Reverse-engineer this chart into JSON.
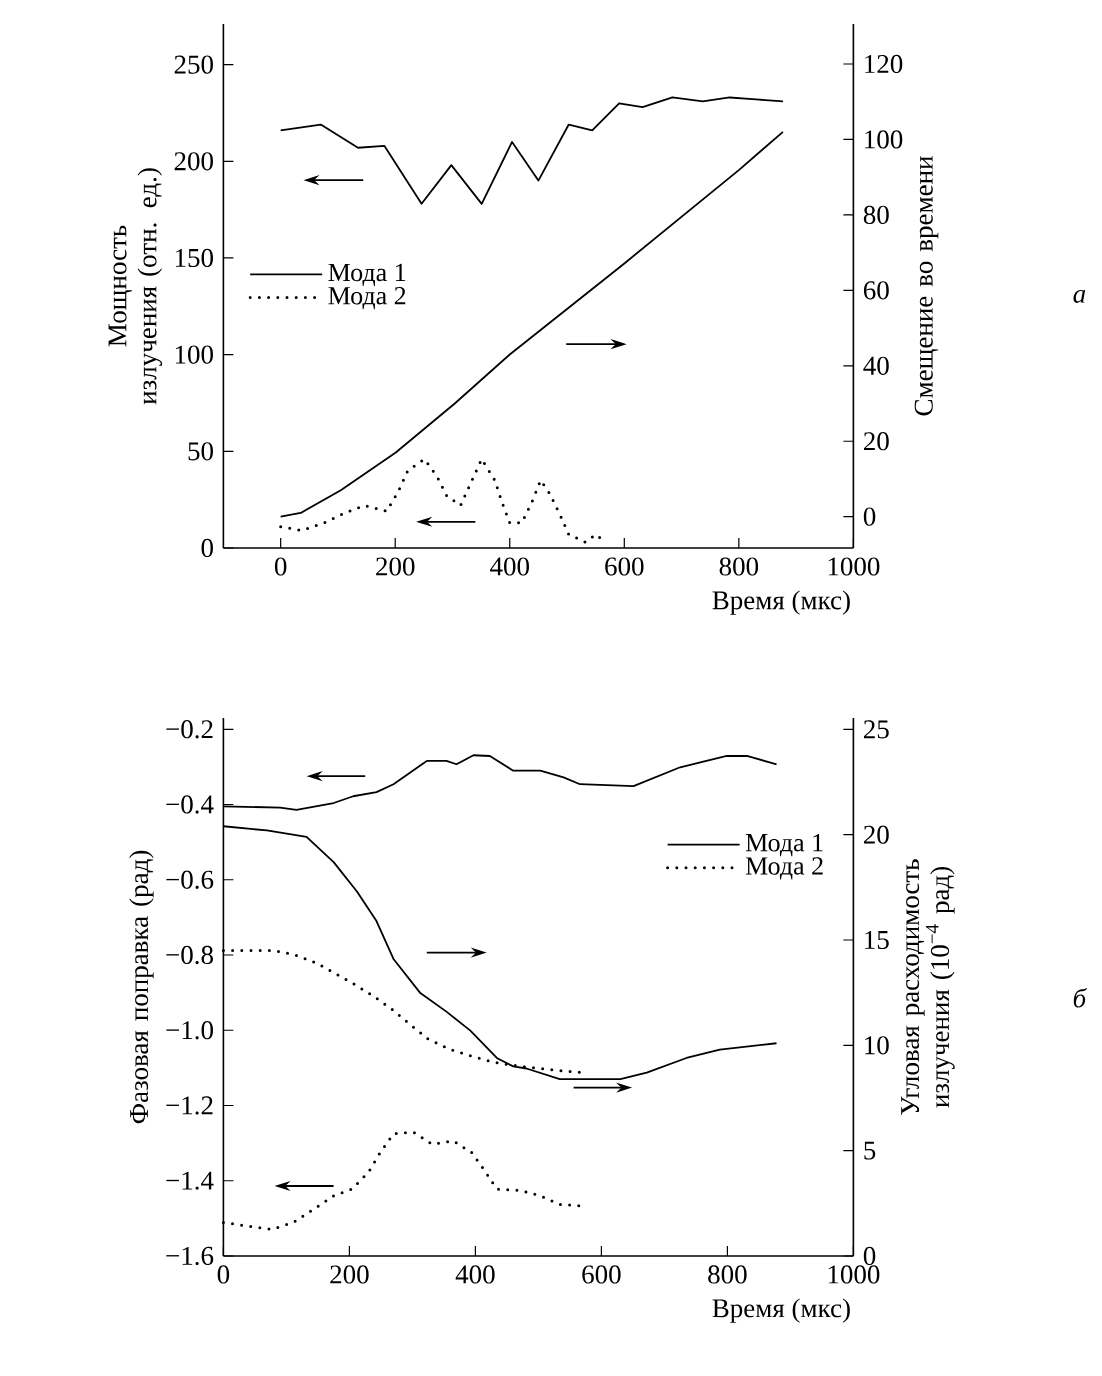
{
  "chart_data": [
    {
      "type": "line",
      "xlabel": "Время (мкс)",
      "ylabel": "Мощность излучения (отн. ед.)",
      "y2label": "Смещение во времени",
      "annotations": [
        "а"
      ],
      "xlim": [
        -100,
        1000
      ],
      "xticks": [
        0,
        200,
        400,
        600,
        800,
        1000
      ],
      "ylim": [
        0,
        271
      ],
      "yticks": [
        0,
        50,
        100,
        150,
        200,
        250
      ],
      "y2lim": [
        -8.3,
        130.6
      ],
      "y2ticks": [
        0,
        20,
        40,
        60,
        80,
        100,
        120
      ],
      "legend": "left",
      "series": [
        {
          "name": "Мода 1",
          "color": "#000000",
          "line_style": "solid",
          "x": [
            0,
            70,
            135,
            181,
            246,
            298,
            351,
            404,
            450,
            503,
            544,
            591,
            632,
            684,
            737,
            784,
            830,
            877
          ],
          "values": [
            216,
            219,
            207,
            208,
            178,
            198,
            178,
            210,
            190,
            219,
            216,
            230,
            228,
            233,
            231,
            233,
            232,
            231
          ]
        },
        {
          "color": "#000000",
          "line_style": "solid",
          "axis": "y2",
          "x": [
            0,
            35,
            105,
            201,
            304,
            400,
            599,
            801,
            877
          ],
          "values": [
            0,
            1,
            7,
            17,
            30,
            43,
            67,
            92,
            102
          ]
        },
        {
          "name": "Мода 2",
          "color": "#000000",
          "line_style": "dotted",
          "x": [
            0,
            37,
            76,
            111,
            146,
            185,
            205,
            222,
            251,
            273,
            290,
            314,
            331,
            351,
            374,
            386,
            400,
            421,
            439,
            454,
            470,
            488,
            503,
            532,
            550,
            567
          ],
          "values": [
            11,
            9,
            13,
            18,
            22,
            19,
            29,
            40,
            46,
            37,
            27,
            22,
            33,
            46,
            35,
            24,
            13,
            13,
            24,
            35,
            28,
            17,
            7,
            3,
            7,
            3
          ]
        }
      ]
    },
    {
      "type": "line",
      "xlabel": "Время (мкс)",
      "ylabel": "Фазовая поправка (рад)",
      "y2label": "Угловая расходимость излучения (10$^{−4}$ рад)",
      "annotations": [
        "б"
      ],
      "xlim": [
        0,
        1000
      ],
      "xticks": [
        0,
        200,
        400,
        600,
        800,
        1000
      ],
      "ylim": [
        -1.6,
        -0.17
      ],
      "yticks": [
        {
          "value": -1.6,
          "label": "−1.6"
        },
        {
          "value": -1.4,
          "label": "−1.4"
        },
        {
          "value": -1.2,
          "label": "−1.2"
        },
        {
          "value": -1.0,
          "label": "−1.0"
        },
        {
          "value": -0.8,
          "label": "−0.8"
        },
        {
          "value": -0.6,
          "label": "−0.6"
        },
        {
          "value": -0.4,
          "label": "−0.4"
        },
        {
          "value": -0.2,
          "label": "−0.2"
        }
      ],
      "y2lim": [
        0,
        25.54
      ],
      "y2ticks": [
        0,
        5,
        10,
        15,
        20,
        25
      ],
      "legend": "top right",
      "series": [
        {
          "name": "Мода 1",
          "color": "#000000",
          "line_style": "solid",
          "x": [
            0,
            90,
            116,
            175,
            206,
            243,
            270,
            323,
            354,
            370,
            397,
            423,
            460,
            503,
            540,
            566,
            651,
            725,
            799,
            831,
            878
          ],
          "values": [
            -0.405,
            -0.408,
            -0.414,
            -0.396,
            -0.378,
            -0.367,
            -0.346,
            -0.284,
            -0.284,
            -0.293,
            -0.269,
            -0.271,
            -0.31,
            -0.31,
            -0.328,
            -0.346,
            -0.351,
            -0.301,
            -0.271,
            -0.271,
            -0.293
          ]
        },
        {
          "color": "#000000",
          "line_style": "solid",
          "axis": "y2",
          "x": [
            0,
            69,
            132,
            175,
            212,
            243,
            270,
            312,
            354,
            392,
            434,
            460,
            481,
            534,
            630,
            672,
            735,
            788,
            878
          ],
          "values": [
            20.4,
            20.2,
            19.9,
            18.7,
            17.3,
            15.9,
            14.1,
            12.5,
            11.6,
            10.7,
            9.4,
            9.0,
            8.9,
            8.4,
            8.4,
            8.7,
            9.4,
            9.8,
            10.1
          ]
        },
        {
          "color": "#000000",
          "line_style": "dotted",
          "axis": "y2",
          "x": [
            0,
            79,
            113,
            148,
            208,
            240,
            268,
            296,
            325,
            360,
            392,
            429,
            471,
            534,
            577
          ],
          "values": [
            14.5,
            14.5,
            14.3,
            13.9,
            12.9,
            12.3,
            11.7,
            11.0,
            10.3,
            9.8,
            9.5,
            9.2,
            9.0,
            8.8,
            8.7
          ]
        },
        {
          "name": "Мода 2",
          "color": "#000000",
          "line_style": "dotted",
          "x": [
            0,
            37,
            77,
            111,
            143,
            175,
            204,
            230,
            249,
            270,
            302,
            331,
            365,
            394,
            413,
            434,
            471,
            503,
            534,
            571
          ],
          "values": [
            -1.511,
            -1.52,
            -1.529,
            -1.511,
            -1.476,
            -1.44,
            -1.422,
            -1.378,
            -1.325,
            -1.275,
            -1.271,
            -1.303,
            -1.294,
            -1.325,
            -1.369,
            -1.422,
            -1.426,
            -1.44,
            -1.463,
            -1.467
          ]
        }
      ]
    }
  ]
}
